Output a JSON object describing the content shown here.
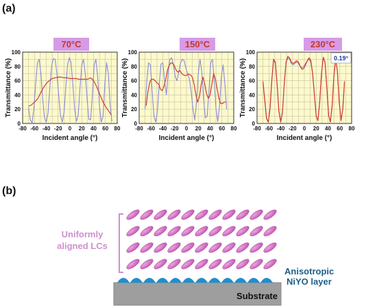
{
  "figure": {
    "panel_a_label": "(a)",
    "panel_b_label": "(b)",
    "colors": {
      "plot_bg": "#fcf9cc",
      "grid": "#c6c0a0",
      "blue_curve": "#8a8ad8",
      "red_curve": "#d23a2a",
      "temp_box": "#d79be6",
      "lc": "#c44fb0",
      "lc_light": "#e6a6dc",
      "bump": "#1f8ed0",
      "substrate": "#9e9e9e",
      "bracket": "#cf8fcf"
    }
  },
  "chart_data": [
    {
      "type": "line",
      "title": "70°C",
      "xlabel": "Incident angle (°)",
      "ylabel": "Transmittance (%)",
      "xlim": [
        -80,
        80
      ],
      "ylim": [
        0,
        100
      ],
      "xticks": [
        "-80",
        "-60",
        "-40",
        "-20",
        "0",
        "20",
        "40",
        "60",
        "80"
      ],
      "yticks": [
        "0",
        "20",
        "40",
        "60",
        "80",
        "100"
      ],
      "grid": true,
      "series": [
        {
          "color": "blue",
          "x": [
            -70,
            -67,
            -64,
            -61,
            -58,
            -55,
            -52,
            -49,
            -46,
            -43,
            -40,
            -37,
            -34,
            -31,
            -28,
            -25,
            -22,
            -19,
            -16,
            -13,
            -10,
            -7,
            -4,
            -1,
            2,
            5,
            8,
            11,
            14,
            17,
            20,
            23,
            26,
            29,
            32,
            35,
            38,
            41,
            44,
            47,
            50,
            53,
            56,
            59,
            62,
            65,
            68,
            71
          ],
          "y": [
            22,
            5,
            1,
            20,
            55,
            85,
            90,
            70,
            35,
            8,
            2,
            15,
            50,
            80,
            91,
            90,
            70,
            40,
            12,
            2,
            15,
            50,
            82,
            92,
            85,
            55,
            20,
            3,
            12,
            50,
            82,
            90,
            70,
            35,
            6,
            5,
            40,
            82,
            90,
            65,
            25,
            2,
            10,
            55,
            85,
            70,
            25,
            3
          ]
        },
        {
          "color": "red",
          "x": [
            -70,
            -65,
            -60,
            -55,
            -50,
            -45,
            -40,
            -35,
            -30,
            -25,
            -20,
            -15,
            -10,
            -5,
            0,
            5,
            10,
            15,
            20,
            25,
            30,
            35,
            40,
            45,
            50,
            55,
            60,
            65,
            70
          ],
          "y": [
            24,
            26,
            30,
            34,
            42,
            50,
            56,
            60,
            63,
            64,
            65,
            65,
            64,
            64,
            63,
            63,
            63,
            62,
            62,
            62,
            62,
            64,
            60,
            52,
            42,
            32,
            24,
            18,
            12
          ]
        }
      ]
    },
    {
      "type": "line",
      "title": "150°C",
      "xlabel": "Incident angle (°)",
      "ylabel": "Transmittance (%)",
      "xlim": [
        -80,
        80
      ],
      "ylim": [
        0,
        100
      ],
      "xticks": [
        "-80",
        "-60",
        "-40",
        "-20",
        "0",
        "20",
        "40",
        "60",
        "80"
      ],
      "yticks": [
        "0",
        "20",
        "40",
        "60",
        "80",
        "100"
      ],
      "grid": true,
      "series": [
        {
          "color": "blue",
          "x": [
            -70,
            -67,
            -64,
            -61,
            -58,
            -55,
            -52,
            -49,
            -46,
            -43,
            -40,
            -37,
            -34,
            -31,
            -28,
            -25,
            -22,
            -19,
            -16,
            -13,
            -10,
            -7,
            -4,
            -1,
            2,
            5,
            8,
            11,
            14,
            17,
            20,
            23,
            26,
            29,
            32,
            35,
            38,
            41,
            44,
            47,
            50,
            53,
            56,
            59,
            62,
            65,
            68
          ],
          "y": [
            20,
            60,
            85,
            82,
            45,
            10,
            2,
            18,
            55,
            83,
            85,
            60,
            40,
            70,
            90,
            92,
            82,
            66,
            60,
            72,
            85,
            90,
            88,
            78,
            70,
            62,
            45,
            20,
            5,
            30,
            70,
            90,
            72,
            35,
            8,
            10,
            45,
            85,
            90,
            60,
            20,
            3,
            25,
            65,
            82,
            55,
            20
          ]
        },
        {
          "color": "red",
          "x": [
            -68,
            -65,
            -62,
            -59,
            -56,
            -53,
            -50,
            -47,
            -44,
            -41,
            -38,
            -35,
            -32,
            -29,
            -26,
            -23,
            -20,
            -17,
            -14,
            -11,
            -8,
            -5,
            -2,
            1,
            4,
            7,
            10,
            13,
            16,
            19,
            22,
            25,
            28,
            31,
            34,
            37,
            40,
            43,
            46,
            49,
            52,
            55,
            58,
            61,
            64,
            67
          ],
          "y": [
            25,
            45,
            58,
            62,
            62,
            60,
            57,
            55,
            48,
            46,
            52,
            62,
            75,
            82,
            85,
            84,
            80,
            74,
            72,
            74,
            70,
            68,
            67,
            68,
            69,
            68,
            65,
            55,
            40,
            30,
            38,
            55,
            65,
            55,
            42,
            35,
            40,
            55,
            70,
            62,
            48,
            35,
            28,
            28,
            30,
            30
          ]
        }
      ]
    },
    {
      "type": "line",
      "title": "230°C",
      "xlabel": "Incident angle (°)",
      "ylabel": "Transmittance (%)",
      "xlim": [
        -80,
        80
      ],
      "ylim": [
        0,
        100
      ],
      "xticks": [
        "-80",
        "-60",
        "-40",
        "-20",
        "0",
        "20",
        "40",
        "60",
        "80"
      ],
      "yticks": [
        "0",
        "20",
        "40",
        "60",
        "80",
        "100"
      ],
      "grid": true,
      "annotation": "0.19°",
      "series": [
        {
          "color": "blue",
          "x": [
            -70,
            -67,
            -64,
            -61,
            -58,
            -55,
            -52,
            -49,
            -46,
            -43,
            -40,
            -37,
            -34,
            -31,
            -28,
            -25,
            -22,
            -19,
            -16,
            -13,
            -10,
            -7,
            -4,
            -1,
            2,
            5,
            8,
            11,
            14,
            17,
            20,
            23,
            26,
            29,
            32,
            35,
            38,
            41,
            44,
            47,
            50,
            53,
            56,
            59,
            62,
            65,
            68
          ],
          "y": [
            60,
            35,
            8,
            2,
            20,
            60,
            88,
            85,
            55,
            18,
            2,
            15,
            55,
            85,
            92,
            90,
            84,
            82,
            84,
            86,
            84,
            80,
            78,
            80,
            84,
            88,
            90,
            86,
            70,
            40,
            10,
            4,
            30,
            70,
            92,
            85,
            50,
            12,
            2,
            25,
            65,
            90,
            72,
            30,
            4,
            20,
            60
          ]
        },
        {
          "color": "red",
          "x": [
            -70,
            -67,
            -64,
            -61,
            -58,
            -55,
            -52,
            -49,
            -46,
            -43,
            -40,
            -37,
            -34,
            -31,
            -28,
            -25,
            -22,
            -19,
            -16,
            -13,
            -10,
            -7,
            -4,
            -1,
            2,
            5,
            8,
            11,
            14,
            17,
            20,
            23,
            26,
            29,
            32,
            35,
            38,
            41,
            44,
            47,
            50,
            53,
            56,
            59,
            62,
            65,
            68
          ],
          "y": [
            58,
            33,
            7,
            2,
            22,
            62,
            90,
            86,
            54,
            17,
            2,
            16,
            56,
            86,
            94,
            92,
            86,
            84,
            86,
            88,
            86,
            80,
            76,
            77,
            82,
            88,
            92,
            88,
            70,
            40,
            10,
            4,
            30,
            70,
            93,
            86,
            50,
            12,
            2,
            24,
            66,
            91,
            72,
            30,
            4,
            20,
            58
          ]
        }
      ]
    }
  ],
  "diagram": {
    "lc_label_line1": "Uniformly",
    "lc_label_line2": "aligned LCs",
    "layer_label_line1": "Anisotropic",
    "layer_label_line2": "NiYO layer",
    "substrate_label": "Substrate"
  }
}
